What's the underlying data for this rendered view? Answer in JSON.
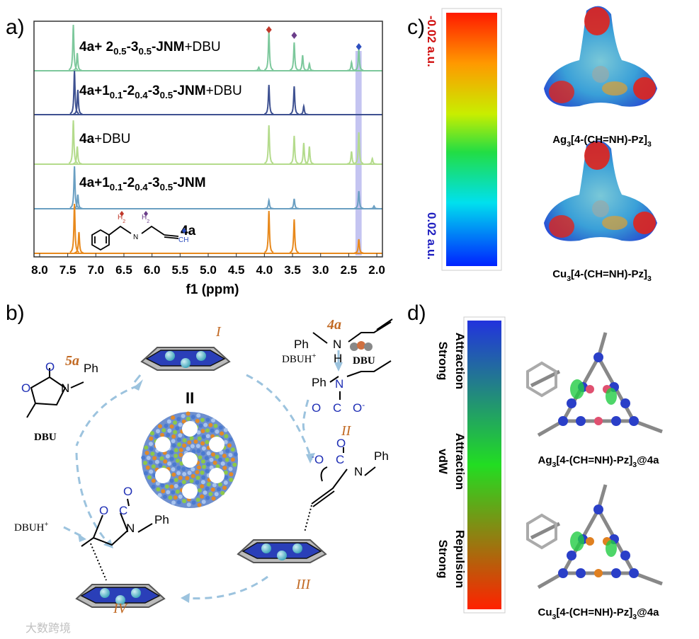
{
  "panel_a": {
    "label": "a)",
    "xlabel": "f1 (ppm)",
    "xlim": [
      8.1,
      1.9
    ],
    "xticks": [
      {
        "value": 8,
        "label": "8.0"
      },
      {
        "value": 7.5,
        "label": "7.5"
      },
      {
        "value": 7,
        "label": "7.0"
      },
      {
        "value": 6.5,
        "label": "6.5"
      },
      {
        "value": 6,
        "label": "6.0"
      },
      {
        "value": 5.5,
        "label": "5.5"
      },
      {
        "value": 5,
        "label": "5.0"
      },
      {
        "value": 4.5,
        "label": "4.5"
      },
      {
        "value": 4,
        "label": "4.0"
      },
      {
        "value": 3.5,
        "label": "3.5"
      },
      {
        "value": 3,
        "label": "3.0"
      },
      {
        "value": 2.5,
        "label": "2.5"
      },
      {
        "value": 2,
        "label": "2.0"
      }
    ],
    "highlight": [
      2.38,
      2.27
    ],
    "markers": [
      {
        "ppm": 3.92,
        "color": "#c0392b"
      },
      {
        "ppm": 3.47,
        "color": "#6b3e8a"
      },
      {
        "ppm": 2.32,
        "color": "#2e4fbf"
      }
    ],
    "traces": [
      {
        "name": [
          [
            "4a+ 2",
            "b"
          ],
          [
            "0.5",
            "sb"
          ],
          [
            "-3",
            "b"
          ],
          [
            "0.5",
            "sb"
          ],
          [
            "-JNM",
            "b"
          ],
          [
            "+DBU",
            "n"
          ]
        ],
        "color": "#7dc89c",
        "peaks": [
          [
            7.4,
            65
          ],
          [
            7.33,
            25
          ],
          [
            4.1,
            5
          ],
          [
            3.92,
            55
          ],
          [
            3.47,
            40
          ],
          [
            3.32,
            22
          ],
          [
            3.2,
            10
          ],
          [
            2.45,
            12
          ],
          [
            2.32,
            30
          ]
        ]
      },
      {
        "name": [
          [
            "4a+1",
            "b"
          ],
          [
            "0.1",
            "sb"
          ],
          [
            "-2",
            "b"
          ],
          [
            "0.4",
            "sb"
          ],
          [
            "-3",
            "b"
          ],
          [
            "0.5",
            "sb"
          ],
          [
            "-JNM",
            "b"
          ],
          [
            "+DBU",
            "n"
          ]
        ],
        "color": "#3e5191",
        "peaks": [
          [
            7.38,
            62
          ],
          [
            7.32,
            35
          ],
          [
            3.92,
            42
          ],
          [
            3.47,
            40
          ],
          [
            3.3,
            12
          ]
        ]
      },
      {
        "name": [
          [
            "4a",
            "b"
          ],
          [
            "+DBU",
            "n"
          ]
        ],
        "color": "#b4db8c",
        "peaks": [
          [
            7.4,
            62
          ],
          [
            7.33,
            25
          ],
          [
            3.92,
            55
          ],
          [
            3.47,
            40
          ],
          [
            3.3,
            30
          ],
          [
            3.2,
            25
          ],
          [
            2.45,
            18
          ],
          [
            2.32,
            45
          ],
          [
            2.08,
            8
          ]
        ]
      },
      {
        "name": [
          [
            "4a+1",
            "b"
          ],
          [
            "0.1",
            "sb"
          ],
          [
            "-2",
            "b"
          ],
          [
            "0.4",
            "sb"
          ],
          [
            "-3",
            "b"
          ],
          [
            "0.5",
            "sb"
          ],
          [
            "-JNM",
            "b"
          ]
        ],
        "color": "#6a9fc2",
        "peaks": [
          [
            7.38,
            60
          ],
          [
            7.32,
            20
          ],
          [
            3.92,
            12
          ],
          [
            3.47,
            14
          ],
          [
            2.32,
            25
          ],
          [
            2.05,
            4
          ]
        ]
      },
      {
        "name": [
          [
            "4a",
            "b"
          ]
        ],
        "color": "#e8891c",
        "peaks": [
          [
            7.38,
            70
          ],
          [
            7.3,
            30
          ],
          [
            3.92,
            60
          ],
          [
            3.47,
            48
          ],
          [
            2.32,
            20
          ]
        ]
      }
    ],
    "structure": {
      "h2a": [
        [
          "H",
          "n"
        ],
        [
          "2",
          "s"
        ]
      ],
      "h2b": [
        [
          "H",
          "n"
        ],
        [
          "2",
          "s"
        ]
      ],
      "n": "N",
      "ch": "CH"
    }
  },
  "panel_b": {
    "label": "b)",
    "center": "II",
    "t5a": "5a",
    "o1": "O",
    "o2": "O",
    "n1": "N",
    "ph1": "Ph",
    "dbu1": "DBU",
    "r1": "I",
    "t4a": "4a",
    "ph2": "Ph",
    "n2": "N",
    "h2": "H",
    "dbuh1": [
      [
        "DBUH",
        "n"
      ],
      [
        "+",
        "p"
      ]
    ],
    "dbu2": "DBU",
    "ph3": "Ph",
    "n3": "N",
    "o3": "O",
    "c3": "C",
    "o4": [
      [
        "O",
        "n"
      ],
      [
        "-",
        "p"
      ]
    ],
    "r2": "II",
    "o5": [
      [
        "-",
        "p"
      ],
      [
        "O",
        "n"
      ]
    ],
    "c5": "C",
    "o6": "O",
    "n5": "N",
    "ph5": "Ph",
    "r3": "III",
    "dbuh2": [
      [
        "DBUH",
        "n"
      ],
      [
        "+",
        "p"
      ]
    ],
    "o7": "O",
    "c7": "C",
    "o8": "O",
    "n7": "N",
    "ph7": "Ph",
    "r4": "IV"
  },
  "panel_c": {
    "label": "c)",
    "top": "-0.02 a.u.",
    "bottom": "0.02 a.u.",
    "captions": [
      [
        [
          "Ag",
          "b"
        ],
        [
          "3",
          "sb"
        ],
        [
          "[4-(CH=NH)-Pz]",
          "b"
        ],
        [
          "3",
          "sb"
        ]
      ],
      [
        [
          "Cu",
          "b"
        ],
        [
          "3",
          "sb"
        ],
        [
          "[4-(CH=NH)-Pz]",
          "b"
        ],
        [
          "3",
          "sb"
        ]
      ]
    ]
  },
  "panel_d": {
    "label": "d)",
    "scale": [
      [
        "Strong",
        "Attraction"
      ],
      [
        "vdW",
        "Attraction"
      ],
      [
        "Strong",
        "Repulsion"
      ]
    ],
    "captions": [
      [
        [
          "Ag",
          "b"
        ],
        [
          "3",
          "sb"
        ],
        [
          "[4-(CH=NH)-Pz]",
          "b"
        ],
        [
          "3",
          "sb"
        ],
        [
          "@4a",
          "b"
        ]
      ],
      [
        [
          "Cu",
          "b"
        ],
        [
          "3",
          "sb"
        ],
        [
          "[4-(CH=NH)-Pz]",
          "b"
        ],
        [
          "3",
          "sb"
        ],
        [
          "@4a",
          "b"
        ]
      ]
    ]
  },
  "watermark": "大数跨境"
}
